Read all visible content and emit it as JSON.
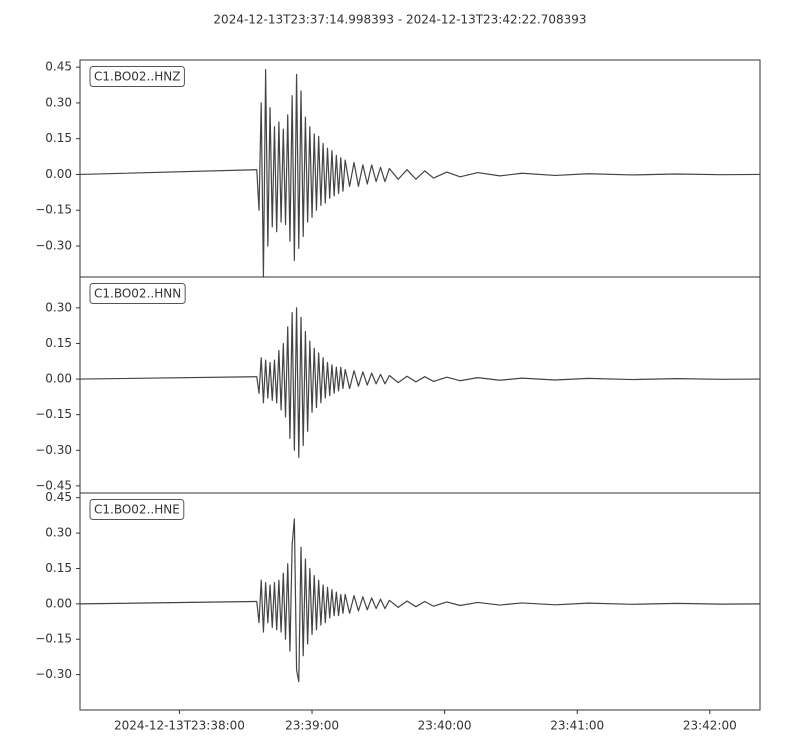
{
  "title": "2024-12-13T23:37:14.998393  -  2024-12-13T23:42:22.708393",
  "chart_data": [
    {
      "type": "line",
      "label": "C1.BO02..HNZ",
      "color": "#444444",
      "xlim": [
        0,
        307.71
      ],
      "ylim": [
        -0.43,
        0.48
      ],
      "yticks": [
        {
          "value": -0.3,
          "label": "−0.30"
        },
        {
          "value": -0.15,
          "label": "−0.15"
        },
        {
          "value": 0,
          "label": "0.00"
        },
        {
          "value": 0.15,
          "label": "0.15"
        },
        {
          "value": 0.3,
          "label": "0.30"
        },
        {
          "value": 0.45,
          "label": "0.45"
        }
      ],
      "x": [
        0,
        80,
        81,
        82,
        83,
        84,
        85,
        86,
        87,
        88,
        89,
        90,
        91,
        92,
        93,
        94,
        95,
        96,
        97,
        98,
        99,
        100,
        101,
        102,
        103,
        104,
        105,
        106,
        107,
        108,
        109,
        110,
        111,
        112,
        113,
        114,
        115,
        116,
        117,
        118,
        119,
        120,
        122,
        124,
        126,
        128,
        130,
        132,
        134,
        136,
        138,
        140,
        144,
        148,
        152,
        156,
        160,
        166,
        172,
        180,
        190,
        200,
        215,
        230,
        250,
        270,
        290,
        307.71
      ],
      "values": [
        0,
        0.02,
        -0.15,
        0.3,
        -0.43,
        0.44,
        -0.3,
        0.28,
        -0.22,
        0.2,
        -0.24,
        0.22,
        -0.2,
        0.19,
        -0.21,
        0.25,
        -0.28,
        0.33,
        -0.36,
        0.42,
        -0.31,
        0.35,
        -0.26,
        0.24,
        -0.2,
        0.2,
        -0.18,
        0.17,
        -0.15,
        0.16,
        -0.13,
        0.13,
        -0.12,
        0.11,
        -0.1,
        0.1,
        -0.09,
        0.08,
        -0.08,
        0.07,
        -0.07,
        0.06,
        -0.05,
        0.05,
        -0.05,
        0.04,
        -0.04,
        0.04,
        -0.03,
        0.03,
        -0.03,
        0.025,
        -0.02,
        0.02,
        -0.02,
        0.015,
        -0.015,
        0.01,
        -0.01,
        0.008,
        -0.006,
        0.005,
        -0.004,
        0.003,
        -0.002,
        0.002,
        -0.001,
        0
      ]
    },
    {
      "type": "line",
      "label": "C1.BO02..HNN",
      "color": "#444444",
      "xlim": [
        0,
        307.71
      ],
      "ylim": [
        -0.48,
        0.43
      ],
      "yticks": [
        {
          "value": -0.45,
          "label": "−0.45"
        },
        {
          "value": -0.3,
          "label": "−0.30"
        },
        {
          "value": -0.15,
          "label": "−0.15"
        },
        {
          "value": 0,
          "label": "0.00"
        },
        {
          "value": 0.15,
          "label": "0.15"
        },
        {
          "value": 0.3,
          "label": "0.30"
        }
      ],
      "x": [
        0,
        80,
        81,
        82,
        83,
        84,
        85,
        86,
        87,
        88,
        89,
        90,
        91,
        92,
        93,
        94,
        95,
        96,
        97,
        98,
        99,
        100,
        101,
        102,
        103,
        104,
        105,
        106,
        107,
        108,
        109,
        110,
        111,
        112,
        113,
        114,
        115,
        116,
        117,
        118,
        119,
        120,
        122,
        124,
        126,
        128,
        130,
        132,
        134,
        136,
        138,
        140,
        144,
        148,
        152,
        156,
        160,
        166,
        172,
        180,
        190,
        200,
        215,
        230,
        250,
        270,
        290,
        307.71
      ],
      "values": [
        0,
        0.01,
        -0.06,
        0.09,
        -0.1,
        0.08,
        -0.08,
        0.07,
        -0.09,
        0.08,
        -0.1,
        0.12,
        -0.13,
        0.15,
        -0.16,
        0.22,
        -0.25,
        0.28,
        -0.3,
        0.3,
        -0.33,
        0.26,
        -0.28,
        0.2,
        -0.22,
        0.16,
        -0.14,
        0.13,
        -0.12,
        0.11,
        -0.1,
        0.09,
        -0.08,
        0.07,
        -0.07,
        0.06,
        -0.06,
        0.05,
        -0.05,
        0.05,
        -0.04,
        0.04,
        -0.04,
        0.035,
        -0.03,
        0.03,
        -0.025,
        0.025,
        -0.02,
        0.02,
        -0.02,
        0.015,
        -0.015,
        0.012,
        -0.012,
        0.01,
        -0.01,
        0.008,
        -0.007,
        0.006,
        -0.005,
        0.004,
        -0.004,
        0.003,
        -0.002,
        0.002,
        -0.001,
        0
      ]
    },
    {
      "type": "line",
      "label": "C1.BO02..HNE",
      "color": "#444444",
      "xlim": [
        0,
        307.71
      ],
      "ylim": [
        -0.45,
        0.47
      ],
      "yticks": [
        {
          "value": -0.3,
          "label": "−0.30"
        },
        {
          "value": -0.15,
          "label": "−0.15"
        },
        {
          "value": 0,
          "label": "0.00"
        },
        {
          "value": 0.15,
          "label": "0.15"
        },
        {
          "value": 0.3,
          "label": "0.30"
        },
        {
          "value": 0.45,
          "label": "0.45"
        }
      ],
      "xticks": [
        {
          "value": 45.001607,
          "label": "2024-12-13T23:38:00"
        },
        {
          "value": 105.001607,
          "label": "23:39:00"
        },
        {
          "value": 165.001607,
          "label": "23:40:00"
        },
        {
          "value": 225.001607,
          "label": "23:41:00"
        },
        {
          "value": 285.001607,
          "label": "23:42:00"
        }
      ],
      "x": [
        0,
        80,
        81,
        82,
        83,
        84,
        85,
        86,
        87,
        88,
        89,
        90,
        91,
        92,
        93,
        94,
        95,
        96,
        97,
        98,
        99,
        100,
        101,
        102,
        103,
        104,
        105,
        106,
        107,
        108,
        109,
        110,
        111,
        112,
        113,
        114,
        115,
        116,
        117,
        118,
        119,
        120,
        122,
        124,
        126,
        128,
        130,
        132,
        134,
        136,
        138,
        140,
        144,
        148,
        152,
        156,
        160,
        166,
        172,
        180,
        190,
        200,
        215,
        230,
        250,
        270,
        290,
        307.71
      ],
      "values": [
        0,
        0.01,
        -0.08,
        0.1,
        -0.12,
        0.09,
        -0.08,
        0.08,
        -0.1,
        0.09,
        -0.11,
        0.1,
        -0.12,
        0.13,
        -0.15,
        0.17,
        -0.2,
        0.25,
        0.36,
        -0.28,
        -0.33,
        0.24,
        -0.22,
        0.19,
        -0.17,
        0.15,
        -0.13,
        0.12,
        -0.11,
        0.1,
        -0.09,
        0.08,
        -0.08,
        0.07,
        -0.06,
        0.06,
        -0.05,
        0.05,
        -0.05,
        0.04,
        -0.04,
        0.04,
        -0.04,
        0.035,
        -0.03,
        0.03,
        -0.025,
        0.025,
        -0.02,
        0.02,
        -0.02,
        0.015,
        -0.015,
        0.012,
        -0.012,
        0.01,
        -0.01,
        0.008,
        -0.007,
        0.006,
        -0.005,
        0.004,
        -0.004,
        0.003,
        -0.002,
        0.002,
        -0.001,
        0
      ]
    }
  ]
}
